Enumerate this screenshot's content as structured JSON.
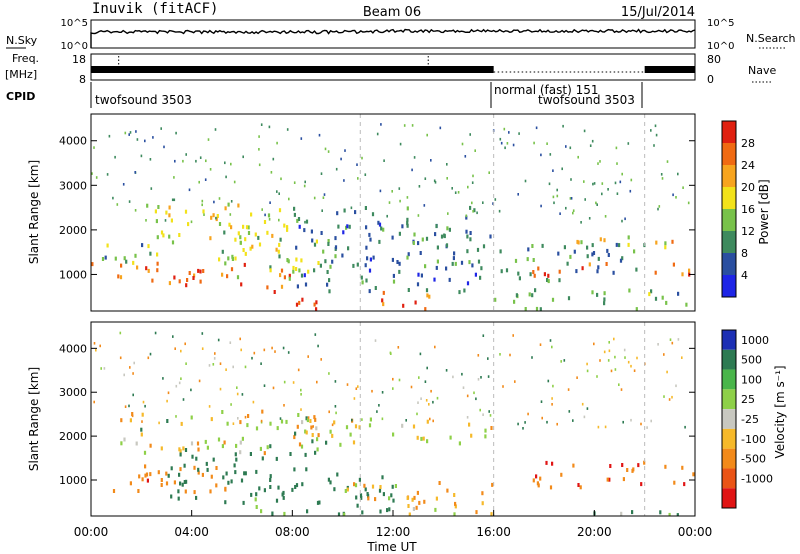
{
  "header": {
    "station": "Inuvik (fitACF)",
    "beam": "Beam 06",
    "date": "15/Jul/2014"
  },
  "top_strips": {
    "nsky_label": "N.Sky",
    "nsky_ticks": [
      "10^5",
      "10^0"
    ],
    "nsearch_label": "N.Search",
    "nsearch_ticks": [
      "10^5",
      "10^0"
    ],
    "freq_label": "Freq.",
    "freq_unit": "[MHz]",
    "freq_ticks": [
      "18",
      "8"
    ],
    "nave_label": "Nave",
    "nave_ticks": [
      "80",
      "0"
    ],
    "cpid_label": "CPID",
    "cpid_segments": [
      {
        "label": "twofsound 3503",
        "start_hour": 0,
        "end_hour": 16
      },
      {
        "label": "normal (fast) 151",
        "start_hour": 16,
        "end_hour": 22
      },
      {
        "label": "twofsound 3503",
        "start_hour": 16,
        "end_hour": 22
      }
    ]
  },
  "colors": {
    "power": [
      "#1e25e6",
      "#2a4fa0",
      "#3e8a5e",
      "#78c24a",
      "#f2e21a",
      "#f7a41e",
      "#f06a12",
      "#e02010"
    ],
    "velocity": [
      "#1c2fb4",
      "#2d7a52",
      "#49b54a",
      "#8ed048",
      "#c8c8c0",
      "#f6b92a",
      "#f28a1a",
      "#ea5416",
      "#e01414"
    ]
  },
  "chart_data": [
    {
      "type": "heatmap",
      "panel": "power",
      "ylabel": "Slant Range [km]",
      "y_ticks": [
        1000,
        2000,
        3000,
        4000
      ],
      "ylim": [
        180,
        4600
      ],
      "colorbar_label": "Power [dB]",
      "colorbar_ticks": [
        "4",
        "8",
        "12",
        "16",
        "20",
        "24",
        "28"
      ],
      "colorbar_range": [
        0,
        32
      ],
      "regions": [
        {
          "t": [
            0.0,
            8.5
          ],
          "r": [
            700,
            1250
          ],
          "value": 27
        },
        {
          "t": [
            0.0,
            3.0
          ],
          "r": [
            1250,
            1700
          ],
          "value": 12
        },
        {
          "t": [
            2.0,
            7.5
          ],
          "r": [
            1400,
            2600
          ],
          "value": 18
        },
        {
          "t": [
            5.0,
            10.0
          ],
          "r": [
            900,
            2200
          ],
          "value": 14
        },
        {
          "t": [
            7.0,
            9.0
          ],
          "r": [
            180,
            700
          ],
          "value": 28
        },
        {
          "t": [
            11.0,
            13.5
          ],
          "r": [
            180,
            600
          ],
          "value": 26
        },
        {
          "t": [
            8.0,
            15.5
          ],
          "r": [
            600,
            2500
          ],
          "value": 8
        },
        {
          "t": [
            12.5,
            16.0
          ],
          "r": [
            1200,
            2100
          ],
          "value": 10
        },
        {
          "t": [
            16.0,
            22.0
          ],
          "r": [
            800,
            1700
          ],
          "value": 10
        },
        {
          "t": [
            17.5,
            24.0
          ],
          "r": [
            950,
            1250
          ],
          "value": 26
        },
        {
          "t": [
            16.0,
            24.0
          ],
          "r": [
            200,
            650
          ],
          "value": 12
        },
        {
          "t": [
            19.0,
            24.0
          ],
          "r": [
            1600,
            1900
          ],
          "value": 20
        }
      ]
    },
    {
      "type": "heatmap",
      "panel": "velocity",
      "xlabel": "Time UT",
      "ylabel": "Slant Range [km]",
      "x_ticks": [
        "00:00",
        "04:00",
        "08:00",
        "12:00",
        "16:00",
        "20:00",
        "00:00"
      ],
      "xlim": [
        0,
        24
      ],
      "y_ticks": [
        1000,
        2000,
        3000,
        4000
      ],
      "ylim": [
        180,
        4600
      ],
      "colorbar_label": "Velocity [m s⁻¹]",
      "colorbar_ticks": [
        "1000",
        "500",
        "100",
        "25",
        "-25",
        "-100",
        "-500",
        "-1000"
      ],
      "regions": [
        {
          "t": [
            0.0,
            5.5
          ],
          "r": [
            700,
            1400
          ],
          "value": -400
        },
        {
          "t": [
            1.0,
            9.0
          ],
          "r": [
            1600,
            2600
          ],
          "value": 0
        },
        {
          "t": [
            3.0,
            9.0
          ],
          "r": [
            400,
            1600
          ],
          "value": 300
        },
        {
          "t": [
            6.5,
            12.0
          ],
          "r": [
            200,
            1200
          ],
          "value": 200
        },
        {
          "t": [
            8.0,
            16.0
          ],
          "r": [
            1800,
            2500
          ],
          "value": 0
        },
        {
          "t": [
            10.0,
            16.0
          ],
          "r": [
            200,
            1000
          ],
          "value": -80
        },
        {
          "t": [
            14.0,
            24.0
          ],
          "r": [
            180,
            280
          ],
          "value": 60
        },
        {
          "t": [
            17.5,
            24.0
          ],
          "r": [
            800,
            1400
          ],
          "value": -450
        }
      ]
    }
  ]
}
